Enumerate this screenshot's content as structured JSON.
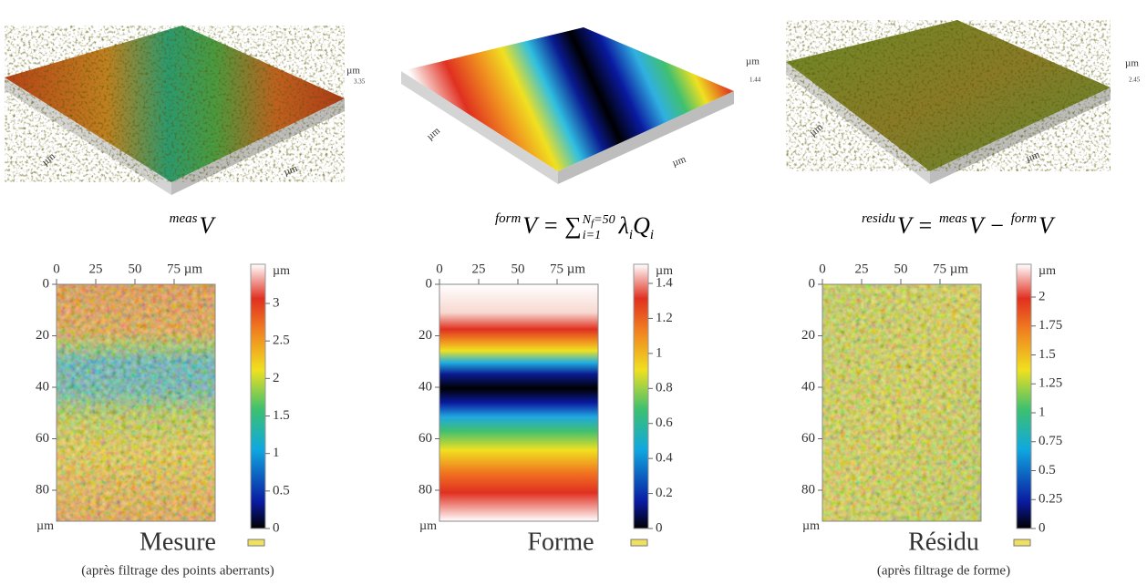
{
  "panels": [
    {
      "surface": {
        "unit": "µm",
        "zmax": "3.35",
        "x_label": "µm",
        "y_label": "µm"
      },
      "formula": [
        {
          "text": "meas",
          "style": "sup"
        },
        {
          "text": "V"
        }
      ],
      "map": {
        "x_ticks": [
          0,
          25,
          50,
          "75 µm"
        ],
        "y_ticks": [
          0,
          20,
          40,
          60,
          80
        ],
        "y_unit": "µm",
        "cb_unit": "µm",
        "cb_ticks": [
          3,
          2.5,
          2,
          1.5,
          1,
          0.5,
          0
        ]
      },
      "title": "Mesure",
      "note": "(après filtrage des points aberrants)"
    },
    {
      "surface": {
        "unit": "µm",
        "zmax": "1.44",
        "x_label": "µm",
        "y_label": "µm"
      },
      "formula": [
        {
          "text": "form",
          "style": "sup"
        },
        {
          "text": "V = ∑"
        },
        {
          "style": "limits",
          "upper": [
            {
              "text": "N"
            },
            {
              "text": "f",
              "style": "sub"
            },
            {
              "text": "=50"
            }
          ],
          "lower": "i=1"
        },
        {
          "text": "λ"
        },
        {
          "text": "i",
          "style": "sub"
        },
        {
          "text": "Q"
        },
        {
          "text": "i",
          "style": "sub"
        }
      ],
      "map": {
        "x_ticks": [
          0,
          25,
          50,
          "75 µm"
        ],
        "y_ticks": [
          0,
          20,
          40,
          60,
          80
        ],
        "y_unit": "µm",
        "cb_unit": "µm",
        "cb_ticks": [
          1.4,
          1.2,
          1,
          0.8,
          0.6,
          0.4,
          0.2,
          0
        ]
      },
      "title": "Forme"
    },
    {
      "surface": {
        "unit": "µm",
        "zmax": "2.45",
        "x_label": "µm",
        "y_label": "µm"
      },
      "formula": [
        {
          "text": "residu",
          "style": "sup"
        },
        {
          "text": "V = "
        },
        {
          "text": "meas",
          "style": "sup"
        },
        {
          "text": "V − "
        },
        {
          "text": "form",
          "style": "sup"
        },
        {
          "text": "V"
        }
      ],
      "map": {
        "x_ticks": [
          0,
          25,
          50,
          "75 µm"
        ],
        "y_ticks": [
          0,
          20,
          40,
          60,
          80
        ],
        "y_unit": "µm",
        "cb_unit": "µm",
        "cb_ticks": [
          2,
          1.75,
          1.5,
          1.25,
          1,
          0.75,
          0.5,
          0.25,
          0
        ]
      },
      "title": "Résidu",
      "note": "(après filtrage de forme)"
    }
  ]
}
